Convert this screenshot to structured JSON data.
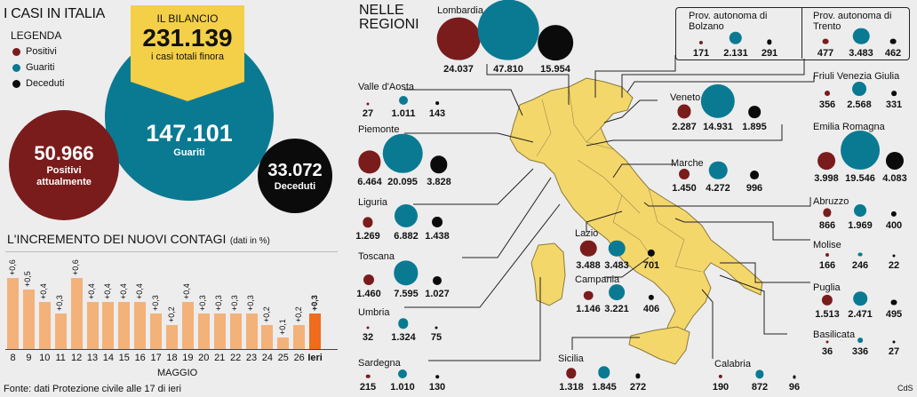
{
  "header": {
    "title": "I CASI IN ITALIA",
    "legend_title": "LEGENDA",
    "legend": [
      {
        "label": "Positivi",
        "color": "#7a1c1c"
      },
      {
        "label": "Guariti",
        "color": "#0a7a93"
      },
      {
        "label": "Deceduti",
        "color": "#0b0b0b"
      }
    ]
  },
  "banner": {
    "heading": "IL BILANCIO",
    "total": "231.139",
    "subtitle": "i casi totali finora"
  },
  "totals": {
    "guariti_value": "147.101",
    "guariti_label": "Guariti",
    "positivi_value": "50.966",
    "positivi_label": "Positivi attualmente",
    "deceduti_value": "33.072",
    "deceduti_label": "Deceduti"
  },
  "regions_title": "NELLE REGIONI",
  "regions": [
    {
      "name": "Lombardia",
      "positivi": "24.037",
      "guariti": "47.810",
      "deceduti": "15.954"
    },
    {
      "name": "Prov. autonoma di Bolzano",
      "positivi": "171",
      "guariti": "2.131",
      "deceduti": "291"
    },
    {
      "name": "Prov. autonoma di Trento",
      "positivi": "477",
      "guariti": "3.483",
      "deceduti": "462"
    },
    {
      "name": "Valle d'Aosta",
      "positivi": "27",
      "guariti": "1.011",
      "deceduti": "143"
    },
    {
      "name": "Friuli Venezia Giulia",
      "positivi": "356",
      "guariti": "2.568",
      "deceduti": "331"
    },
    {
      "name": "Veneto",
      "positivi": "2.287",
      "guariti": "14.931",
      "deceduti": "1.895"
    },
    {
      "name": "Piemonte",
      "positivi": "6.464",
      "guariti": "20.095",
      "deceduti": "3.828"
    },
    {
      "name": "Emilia Romagna",
      "positivi": "3.998",
      "guariti": "19.546",
      "deceduti": "4.083"
    },
    {
      "name": "Marche",
      "positivi": "1.450",
      "guariti": "4.272",
      "deceduti": "996"
    },
    {
      "name": "Liguria",
      "positivi": "1.269",
      "guariti": "6.882",
      "deceduti": "1.438"
    },
    {
      "name": "Abruzzo",
      "positivi": "866",
      "guariti": "1.969",
      "deceduti": "400"
    },
    {
      "name": "Lazio",
      "positivi": "3.488",
      "guariti": "3.483",
      "deceduti": "701"
    },
    {
      "name": "Toscana",
      "positivi": "1.460",
      "guariti": "7.595",
      "deceduti": "1.027"
    },
    {
      "name": "Molise",
      "positivi": "166",
      "guariti": "246",
      "deceduti": "22"
    },
    {
      "name": "Campania",
      "positivi": "1.146",
      "guariti": "3.221",
      "deceduti": "406"
    },
    {
      "name": "Umbria",
      "positivi": "32",
      "guariti": "1.324",
      "deceduti": "75"
    },
    {
      "name": "Puglia",
      "positivi": "1.513",
      "guariti": "2.471",
      "deceduti": "495"
    },
    {
      "name": "Basilicata",
      "positivi": "36",
      "guariti": "336",
      "deceduti": "27"
    },
    {
      "name": "Sardegna",
      "positivi": "215",
      "guariti": "1.010",
      "deceduti": "130"
    },
    {
      "name": "Sicilia",
      "positivi": "1.318",
      "guariti": "1.845",
      "deceduti": "272"
    },
    {
      "name": "Calabria",
      "positivi": "190",
      "guariti": "872",
      "deceduti": "96"
    }
  ],
  "chart_title_main": "L'INCREMENTO DEI NUOVI CONTAGI",
  "chart_title_unit": "(dati in %)",
  "footer_note": "Fonte: dati Protezione civile alle 17 di ieri",
  "credit": "CdS",
  "chart_data": {
    "type": "bar",
    "categories": [
      "8",
      "9",
      "10",
      "11",
      "12",
      "13",
      "14",
      "15",
      "16",
      "17",
      "18",
      "19",
      "20",
      "21",
      "22",
      "23",
      "24",
      "25",
      "26",
      "Ieri"
    ],
    "values": [
      0.6,
      0.5,
      0.4,
      0.3,
      0.6,
      0.4,
      0.4,
      0.4,
      0.4,
      0.3,
      0.2,
      0.4,
      0.3,
      0.3,
      0.3,
      0.3,
      0.2,
      0.1,
      0.2,
      0.3
    ],
    "value_labels": [
      "+0,6",
      "+0,5",
      "+0,4",
      "+0,3",
      "+0,6",
      "+0,4",
      "+0,4",
      "+0,4",
      "+0,4",
      "+0,3",
      "+0,2",
      "+0,4",
      "+0,3",
      "+0,3",
      "+0,3",
      "+0,3",
      "+0,2",
      "+0,1",
      "+0,2",
      "+0,3"
    ],
    "xlabel": "MAGGIO",
    "ylim": [
      0,
      0.6
    ],
    "colors": {
      "bar": "#f2b27a",
      "last": "#ef6b1e"
    }
  },
  "colors": {
    "positivi": "#7a1c1c",
    "guariti": "#0a7a93",
    "deceduti": "#0b0b0b",
    "map": "#f4d76b",
    "banner": "#f4cf48"
  }
}
